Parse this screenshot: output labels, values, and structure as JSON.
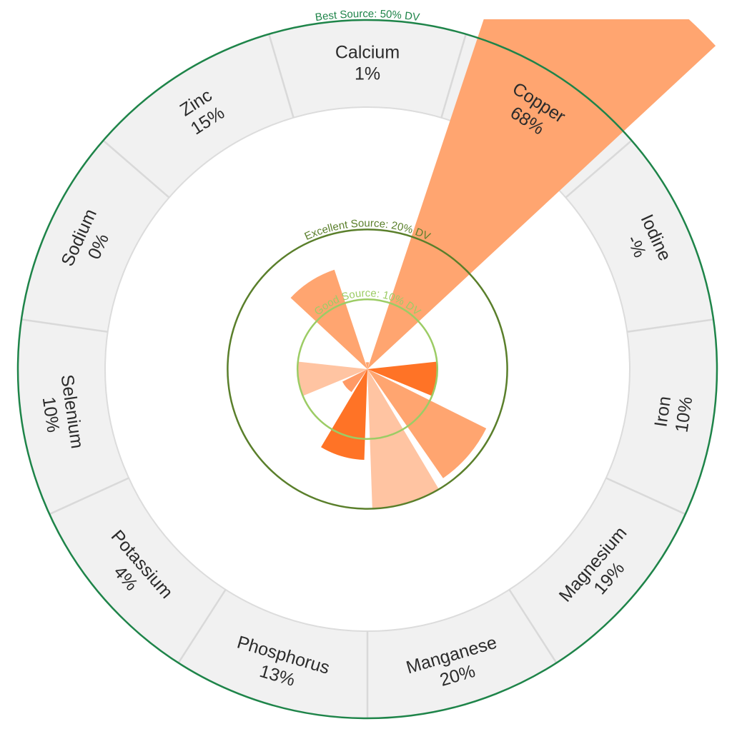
{
  "chart_data": {
    "type": "polar-bar",
    "unit": "% DV",
    "categories": [
      "Calcium",
      "Copper",
      "Iodine",
      "Iron",
      "Magnesium",
      "Manganese",
      "Phosphorus",
      "Potassium",
      "Selenium",
      "Sodium",
      "Zinc"
    ],
    "values": [
      1,
      68,
      null,
      10,
      19,
      20,
      13,
      4,
      10,
      0,
      15
    ],
    "value_labels": [
      "1%",
      "68%",
      "-%",
      "10%",
      "19%",
      "20%",
      "13%",
      "4%",
      "10%",
      "0%",
      "15%"
    ],
    "bar_colors": [
      "#ffa570",
      "#ffa570",
      "#ffa570",
      "#ff7326",
      "#ffa570",
      "#ffc4a2",
      "#ff7326",
      "#ff9a66",
      "#ffc4a2",
      "#ffa570",
      "#ffa570"
    ],
    "thresholds": [
      {
        "label": "Good Source: 10% DV",
        "value": 10,
        "color": "#9ccc65"
      },
      {
        "label": "Excellent Source: 20% DV",
        "value": 20,
        "color": "#5a7f2b"
      },
      {
        "label": "Best Source: 50% DV",
        "value": 50,
        "color": "#1e8449"
      }
    ]
  }
}
